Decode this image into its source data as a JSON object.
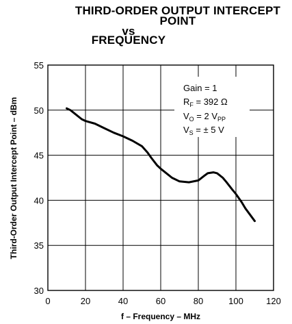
{
  "chart_data": {
    "type": "line",
    "title_lines": [
      "THIRD-ORDER OUTPUT INTERCEPT",
      "POINT",
      "vs",
      "FREQUENCY"
    ],
    "xlabel": "f – Frequency – MHz",
    "ylabel": "Third-Order Output Intercept Point – dBm",
    "xlim": [
      0,
      120
    ],
    "ylim": [
      30,
      55
    ],
    "xticks": [
      0,
      20,
      40,
      60,
      80,
      100,
      120
    ],
    "yticks": [
      30,
      35,
      40,
      45,
      50,
      55
    ],
    "grid": true,
    "annotations": [
      {
        "main": "Gain = 1",
        "sub": "",
        "tail": ""
      },
      {
        "main": "R",
        "sub": "F",
        "tail": " = 392 Ω"
      },
      {
        "main": "V",
        "sub": "O",
        "tail": " = 2 V"
      },
      {
        "main": "V",
        "sub": "S",
        "tail": " = ± 5 V"
      }
    ],
    "annotation_extra_sub": "PP",
    "series": [
      {
        "x": [
          10,
          12,
          15,
          18,
          20,
          25,
          30,
          35,
          40,
          45,
          50,
          53,
          55,
          58,
          60,
          63,
          66,
          70,
          75,
          80,
          83,
          85,
          88,
          90,
          93,
          95,
          98,
          100,
          103,
          105,
          110
        ],
        "y": [
          50.2,
          50.0,
          49.5,
          49.0,
          48.8,
          48.5,
          48.0,
          47.5,
          47.1,
          46.6,
          46.0,
          45.3,
          44.7,
          43.9,
          43.5,
          43.0,
          42.5,
          42.1,
          42.0,
          42.2,
          42.7,
          43.0,
          43.1,
          43.0,
          42.5,
          42.0,
          41.2,
          40.7,
          39.8,
          39.1,
          37.7
        ]
      }
    ]
  }
}
